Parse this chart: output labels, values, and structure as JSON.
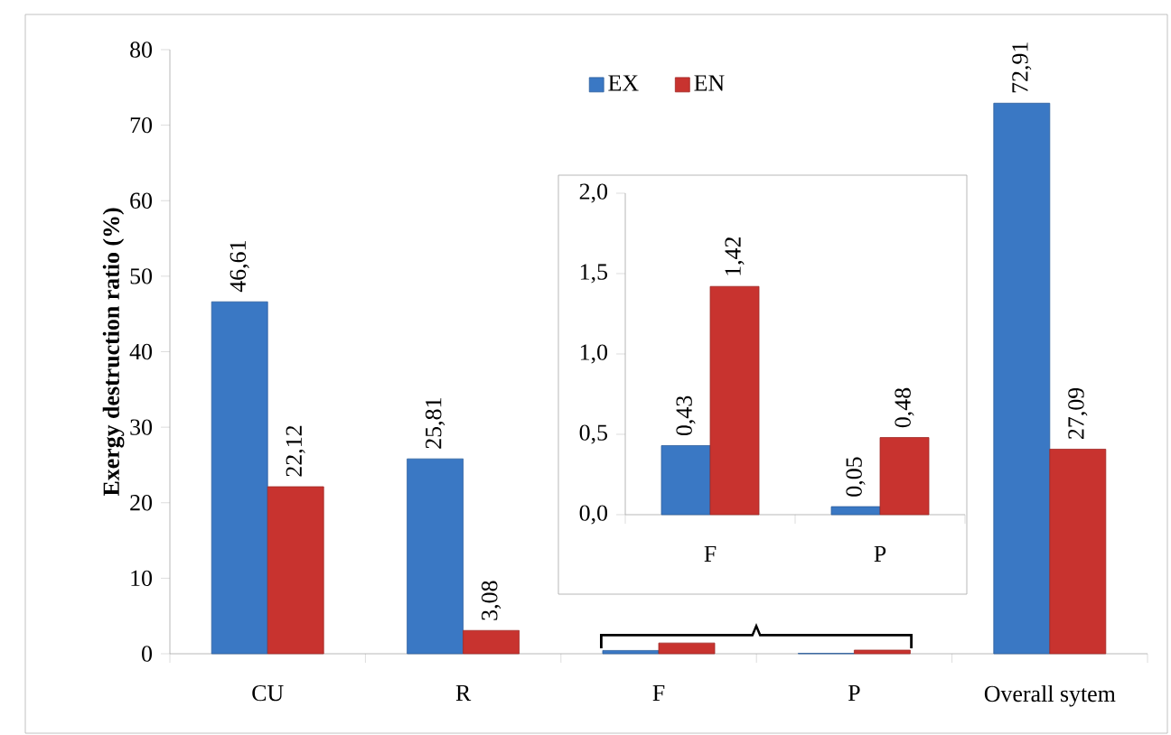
{
  "chart_data": [
    {
      "type": "bar",
      "ylabel": "Exergy destruction ratio (%)",
      "categories": [
        "CU",
        "R",
        "F",
        "P",
        "Overall sytem"
      ],
      "series": [
        {
          "name": "EX",
          "color": "#3a78c4",
          "values": [
            46.61,
            25.81,
            0.43,
            0.05,
            72.91
          ],
          "value_labels": [
            "46,61",
            "25,81",
            null,
            null,
            "72,91"
          ]
        },
        {
          "name": "EN",
          "color": "#c8332f",
          "values": [
            22.12,
            3.08,
            1.42,
            0.48,
            27.09
          ],
          "value_labels": [
            "22,12",
            "3,08",
            null,
            null,
            "27,09"
          ]
        }
      ],
      "ylim": [
        0,
        80
      ],
      "yticks": [
        0,
        10,
        20,
        30,
        40,
        50,
        60,
        70,
        80
      ],
      "legend": "top",
      "grid": false
    },
    {
      "type": "bar",
      "categories": [
        "F",
        "P"
      ],
      "series": [
        {
          "color": "#3a78c4",
          "values": [
            0.43,
            0.05
          ],
          "value_labels": [
            "0,43",
            "0,05"
          ]
        },
        {
          "color": "#c8332f",
          "values": [
            1.42,
            0.48
          ],
          "value_labels": [
            "1,42",
            "0,48"
          ]
        }
      ],
      "ylim": [
        0,
        2
      ],
      "yticks": [
        {
          "value": 0,
          "label": "0,0"
        },
        {
          "value": 0.5,
          "label": "0,5"
        },
        {
          "value": 1,
          "label": "1,0"
        },
        {
          "value": 1.5,
          "label": "1,5"
        },
        {
          "value": 2,
          "label": "2,0"
        }
      ],
      "grid": false
    }
  ]
}
